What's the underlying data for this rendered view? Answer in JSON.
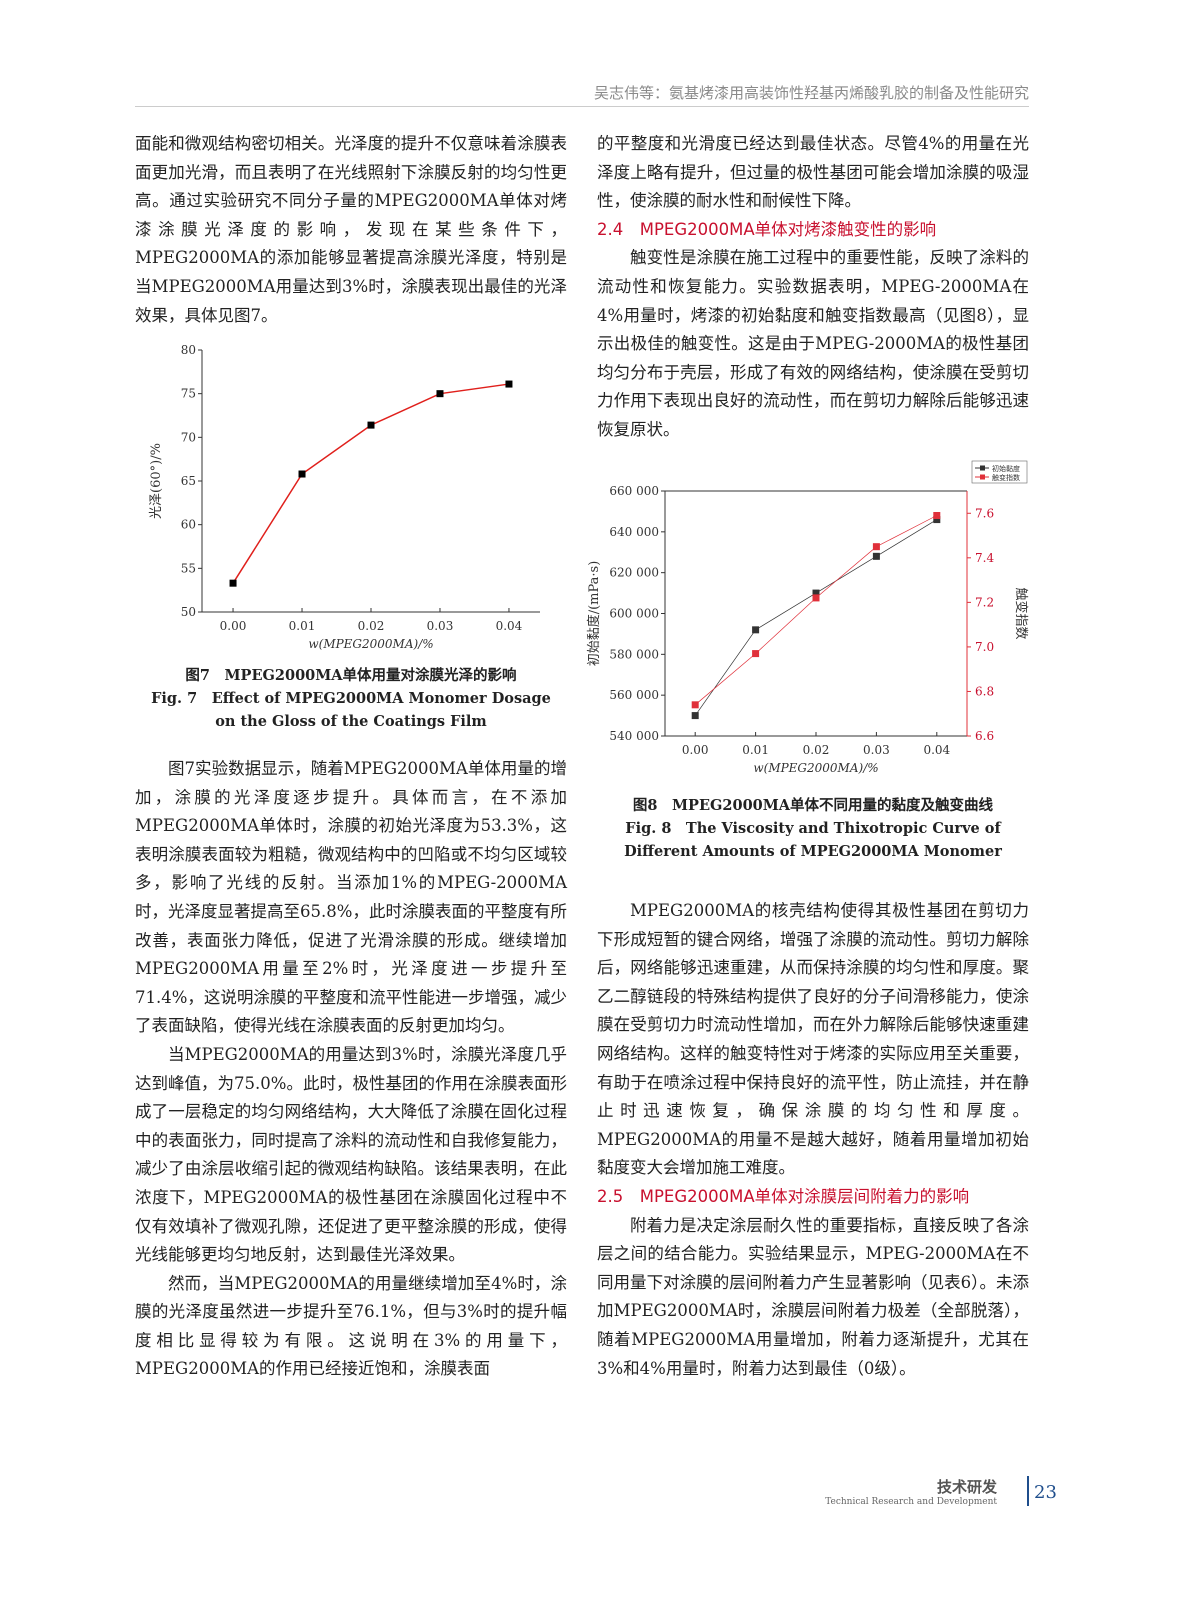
{
  "header": {
    "running_title": "吴志伟等：氨基烤漆用高装饰性羟基丙烯酸乳胶的制备及性能研究"
  },
  "left": {
    "p1": "面能和微观结构密切相关。光泽度的提升不仅意味着涂膜表面更加光滑，而且表明了在光线照射下涂膜反射的均匀性更高。通过实验研究不同分子量的MPEG2000MA单体对烤漆涂膜光泽度的影响，发现在某些条件下，MPEG2000MA的添加能够显著提高涂膜光泽度，特别是当MPEG2000MA用量达到3%时，涂膜表现出最佳的光泽效果，具体见图7。",
    "fig7_cap_cn": "图7　MPEG2000MA单体用量对涂膜光泽的影响",
    "fig7_cap_en": "Fig. 7　Effect of MPEG2000MA Monomer Dosage on the Gloss of the Coatings Film",
    "p2": "图7实验数据显示，随着MPEG2000MA单体用量的增加，涂膜的光泽度逐步提升。具体而言，在不添加MPEG2000MA单体时，涂膜的初始光泽度为53.3%，这表明涂膜表面较为粗糙，微观结构中的凹陷或不均匀区域较多，影响了光线的反射。当添加1%的MPEG-2000MA时，光泽度显著提高至65.8%，此时涂膜表面的平整度有所改善，表面张力降低，促进了光滑涂膜的形成。继续增加MPEG2000MA用量至2%时，光泽度进一步提升至71.4%，这说明涂膜的平整度和流平性能进一步增强，减少了表面缺陷，使得光线在涂膜表面的反射更加均匀。",
    "p3": "当MPEG2000MA的用量达到3%时，涂膜光泽度几乎达到峰值，为75.0%。此时，极性基团的作用在涂膜表面形成了一层稳定的均匀网络结构，大大降低了涂膜在固化过程中的表面张力，同时提高了涂料的流动性和自我修复能力，减少了由涂层收缩引起的微观结构缺陷。该结果表明，在此浓度下，MPEG2000MA的极性基团在涂膜固化过程中不仅有效填补了微观孔隙，还促进了更平整涂膜的形成，使得光线能够更均匀地反射，达到最佳光泽效果。",
    "p4": "然而，当MPEG2000MA的用量继续增加至4%时，涂膜的光泽度虽然进一步提升至76.1%，但与3%时的提升幅度相比显得较为有限。这说明在3%的用量下，MPEG2000MA的作用已经接近饱和，涂膜表面"
  },
  "right": {
    "p1": "的平整度和光滑度已经达到最佳状态。尽管4%的用量在光泽度上略有提升，但过量的极性基团可能会增加涂膜的吸湿性，使涂膜的耐水性和耐候性下降。",
    "sec24": "2.4　MPEG2000MA单体对烤漆触变性的影响",
    "p2": "触变性是涂膜在施工过程中的重要性能，反映了涂料的流动性和恢复能力。实验数据表明，MPEG-2000MA在4%用量时，烤漆的初始黏度和触变指数最高（见图8），显示出极佳的触变性。这是由于MPEG-2000MA的极性基团均匀分布于壳层，形成了有效的网络结构，使涂膜在受剪切力作用下表现出良好的流动性，而在剪切力解除后能够迅速恢复原状。",
    "fig8_cap_cn": "图8　MPEG2000MA单体不同用量的黏度及触变曲线",
    "fig8_cap_en": "Fig. 8　The Viscosity and Thixotropic Curve of Different Amounts of MPEG2000MA Monomer",
    "p3": "MPEG2000MA的核壳结构使得其极性基团在剪切力下形成短暂的键合网络，增强了涂膜的流动性。剪切力解除后，网络能够迅速重建，从而保持涂膜的均匀性和厚度。聚乙二醇链段的特殊结构提供了良好的分子间滑移能力，使涂膜在受剪切力时流动性增加，而在外力解除后能够快速重建网络结构。这样的触变特性对于烤漆的实际应用至关重要，有助于在喷涂过程中保持良好的流平性，防止流挂，并在静止时迅速恢复，确保涂膜的均匀性和厚度。MPEG2000MA的用量不是越大越好，随着用量增加初始黏度变大会增加施工难度。",
    "sec25": "2.5　MPEG2000MA单体对涂膜层间附着力的影响",
    "p4": "附着力是决定涂层耐久性的重要指标，直接反映了各涂层之间的结合能力。实验结果显示，MPEG-2000MA在不同用量下对涂膜的层间附着力产生显著影响（见表6）。未添加MPEG2000MA时，涂膜层间附着力极差（全部脱落），随着MPEG2000MA用量增加，附着力逐渐提升，尤其在3%和4%用量时，附着力达到最佳（0级）。"
  },
  "footer": {
    "section_cn": "技术研发",
    "section_en": "Technical Research and Development",
    "page": "23"
  },
  "chart_data": [
    {
      "type": "line",
      "x": [
        0.0,
        0.01,
        0.02,
        0.03,
        0.04
      ],
      "series": [
        {
          "values": [
            53.3,
            65.8,
            71.4,
            75.0,
            76.1
          ],
          "color": "#e0201c",
          "marker_color": "#000000"
        }
      ],
      "xlabel": "w(MPEG2000MA)/%",
      "ylabel": "光泽(60°)/%",
      "xlim": [
        -0.0045,
        0.0445
      ],
      "ylim": [
        50,
        80
      ],
      "xticks": [
        "0.00",
        "0.01",
        "0.02",
        "0.03",
        "0.04"
      ],
      "yticks": [
        "50",
        "55",
        "60",
        "65",
        "70",
        "75",
        "80"
      ],
      "grid": false
    },
    {
      "type": "line",
      "x": [
        0.0,
        0.01,
        0.02,
        0.03,
        0.04
      ],
      "series": [
        {
          "name": "初始黏度",
          "values": [
            550000,
            592000,
            610000,
            628000,
            646000
          ],
          "color": "#333333",
          "axis": "left"
        },
        {
          "name": "触变指数",
          "values": [
            6.74,
            6.97,
            7.22,
            7.45,
            7.59
          ],
          "color": "#e0303a",
          "axis": "right"
        }
      ],
      "xlabel": "w(MPEG2000MA)/%",
      "ylabel": "初始黏度/(mPa·s)",
      "y2label": "触变指数",
      "xlim": [
        -0.005,
        0.045
      ],
      "ylim": [
        540000,
        660000
      ],
      "y2lim": [
        6.6,
        7.7
      ],
      "xticks": [
        "0.00",
        "0.01",
        "0.02",
        "0.03",
        "0.04"
      ],
      "yticks": [
        "540 000",
        "560 000",
        "580 000",
        "600 000",
        "620 000",
        "640 000",
        "660 000"
      ],
      "y2ticks": [
        "6.6",
        "6.8",
        "7.0",
        "7.2",
        "7.4",
        "7.6"
      ],
      "legend": "top-right",
      "grid": false
    }
  ]
}
